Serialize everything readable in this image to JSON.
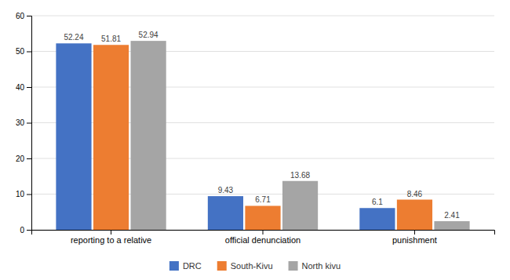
{
  "chart_data": {
    "type": "bar",
    "categories": [
      "reporting to a relative",
      "official denunciation",
      "punishment"
    ],
    "series": [
      {
        "name": "DRC",
        "color": "#4472c4",
        "values": [
          52.24,
          9.43,
          6.1
        ]
      },
      {
        "name": "South-Kivu",
        "color": "#ed7d31",
        "values": [
          51.81,
          6.71,
          8.46
        ]
      },
      {
        "name": "North kivu",
        "color": "#a5a5a5",
        "values": [
          52.94,
          13.68,
          2.41
        ]
      }
    ],
    "ylim": [
      0,
      60
    ],
    "yticks": [
      0,
      10,
      20,
      30,
      40,
      50,
      60
    ],
    "grid": true,
    "legend": "bottom",
    "data_labels": true
  }
}
